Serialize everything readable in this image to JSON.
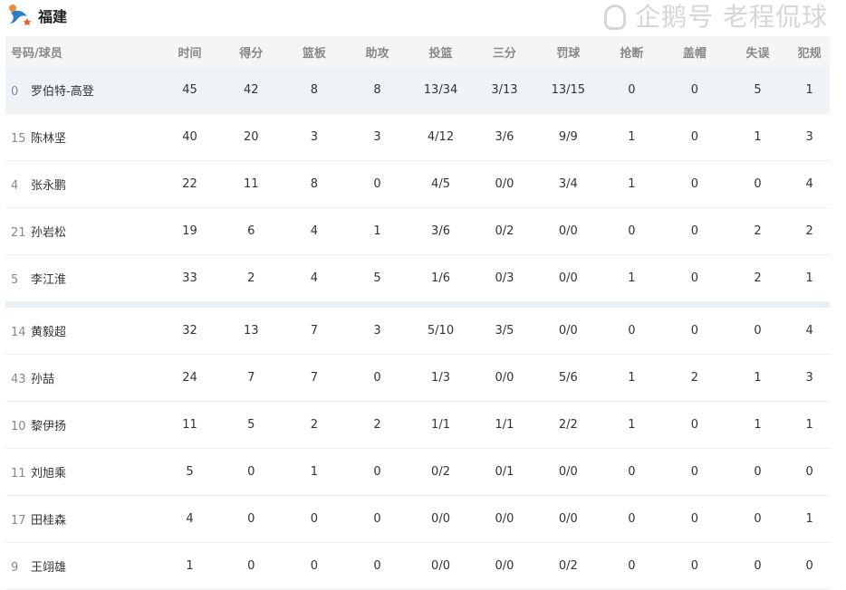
{
  "team": {
    "name": "福建",
    "logo": "fujian-sturgeons-logo"
  },
  "columns": [
    "号码/球员",
    "时间",
    "得分",
    "篮板",
    "助攻",
    "投篮",
    "三分",
    "罚球",
    "抢断",
    "盖帽",
    "失误",
    "犯规"
  ],
  "starters": [
    {
      "num": "0",
      "name": "罗伯特-高登",
      "stats": [
        "45",
        "42",
        "8",
        "8",
        "13/34",
        "3/13",
        "13/15",
        "0",
        "0",
        "5",
        "1"
      ]
    },
    {
      "num": "15",
      "name": "陈林坚",
      "stats": [
        "40",
        "20",
        "3",
        "3",
        "4/12",
        "3/6",
        "9/9",
        "1",
        "0",
        "1",
        "3"
      ]
    },
    {
      "num": "4",
      "name": "张永鹏",
      "stats": [
        "22",
        "11",
        "8",
        "0",
        "4/5",
        "0/0",
        "3/4",
        "1",
        "0",
        "0",
        "4"
      ]
    },
    {
      "num": "21",
      "name": "孙岩松",
      "stats": [
        "19",
        "6",
        "4",
        "1",
        "3/6",
        "0/2",
        "0/0",
        "0",
        "0",
        "2",
        "2"
      ]
    },
    {
      "num": "5",
      "name": "李江淮",
      "stats": [
        "33",
        "2",
        "4",
        "5",
        "1/6",
        "0/3",
        "0/0",
        "1",
        "0",
        "2",
        "1"
      ]
    }
  ],
  "bench": [
    {
      "num": "14",
      "name": "黄毅超",
      "stats": [
        "32",
        "13",
        "7",
        "3",
        "5/10",
        "3/5",
        "0/0",
        "0",
        "0",
        "0",
        "4"
      ]
    },
    {
      "num": "43",
      "name": "孙喆",
      "stats": [
        "24",
        "7",
        "7",
        "0",
        "1/3",
        "0/0",
        "5/6",
        "1",
        "2",
        "1",
        "3"
      ]
    },
    {
      "num": "10",
      "name": "黎伊扬",
      "stats": [
        "11",
        "5",
        "2",
        "2",
        "1/1",
        "1/1",
        "2/2",
        "1",
        "0",
        "1",
        "1"
      ]
    },
    {
      "num": "11",
      "name": "刘旭乘",
      "stats": [
        "5",
        "0",
        "1",
        "0",
        "0/2",
        "0/1",
        "0/0",
        "0",
        "0",
        "0",
        "0"
      ]
    },
    {
      "num": "17",
      "name": "田桂森",
      "stats": [
        "4",
        "0",
        "0",
        "0",
        "0/0",
        "0/0",
        "0/0",
        "0",
        "0",
        "0",
        "1"
      ]
    },
    {
      "num": "9",
      "name": "王翊雄",
      "stats": [
        "1",
        "0",
        "0",
        "0",
        "0/0",
        "0/0",
        "0/2",
        "0",
        "0",
        "0",
        "0"
      ]
    }
  ],
  "watermark": "企鹅号 老程侃球",
  "colors": {
    "highlight_row": "#eef3f7",
    "header_bg": "#f5f5f5"
  }
}
